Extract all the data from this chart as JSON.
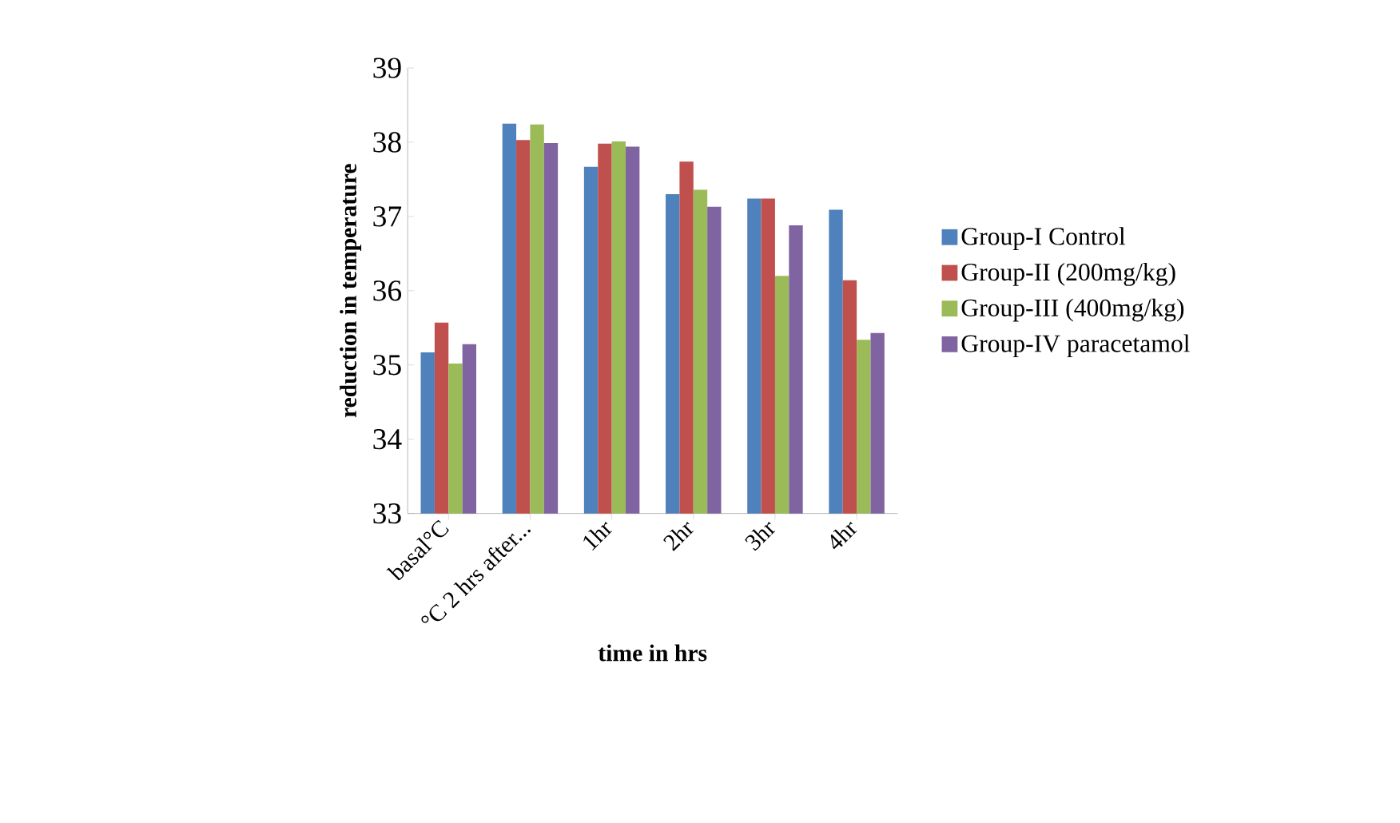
{
  "chart_data": {
    "type": "bar",
    "xlabel": "time in hrs",
    "ylabel": "reduction in temperature",
    "categories": [
      "basal°C",
      "°C 2 hrs after...",
      "1hr",
      "2hr",
      "3hr",
      "4hr"
    ],
    "series": [
      {
        "name": "Group-I Control",
        "color": "#4f81bd",
        "values": [
          35.17,
          38.25,
          37.67,
          37.3,
          37.24,
          37.09
        ]
      },
      {
        "name": "Group-II (200mg/kg)",
        "color": "#c0504d",
        "values": [
          35.57,
          38.03,
          37.98,
          37.74,
          37.24,
          36.14
        ]
      },
      {
        "name": "Group-III (400mg/kg)",
        "color": "#9bbb59",
        "values": [
          35.02,
          38.24,
          38.01,
          37.36,
          36.2,
          35.34
        ]
      },
      {
        "name": "Group-IV paracetamol",
        "color": "#8064a2",
        "values": [
          35.28,
          37.99,
          37.94,
          37.13,
          36.88,
          35.43
        ]
      }
    ],
    "ylim": [
      33,
      39
    ],
    "yticks": [
      33,
      34,
      35,
      36,
      37,
      38,
      39
    ],
    "grid": false,
    "legend": "right"
  }
}
